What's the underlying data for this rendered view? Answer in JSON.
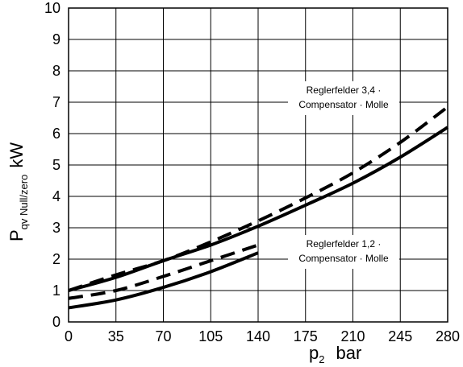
{
  "chart_data": {
    "type": "line",
    "title": "",
    "xlabel": {
      "main": "p",
      "sub": "2",
      "unit": "bar"
    },
    "ylabel": {
      "main": "P",
      "sub": "qv Null/zero",
      "unit": "kW"
    },
    "xlim": [
      0,
      280
    ],
    "ylim": [
      0,
      10
    ],
    "x_ticks": [
      "0",
      "35",
      "70",
      "105",
      "140",
      "175",
      "210",
      "245",
      "280"
    ],
    "y_ticks": [
      "0",
      "1",
      "2",
      "3",
      "4",
      "5",
      "6",
      "7",
      "8",
      "9",
      "10"
    ],
    "grid": true,
    "annotations": [
      {
        "lines": [
          "Reglerfelder 3,4 ·",
          "Compensator · Molle"
        ]
      },
      {
        "lines": [
          "Reglerfelder 1,2 ·",
          "Compensator · Molle"
        ]
      }
    ],
    "series": [
      {
        "style": "solid",
        "x": [
          0,
          35,
          70,
          105,
          140,
          175,
          210,
          245,
          280
        ],
        "y": [
          1.0,
          1.42,
          1.95,
          2.45,
          3.05,
          3.72,
          4.42,
          5.25,
          6.2
        ]
      },
      {
        "style": "dashed",
        "x": [
          0,
          35,
          70,
          105,
          140,
          175,
          210,
          245,
          280
        ],
        "y": [
          1.0,
          1.5,
          1.95,
          2.55,
          3.22,
          3.95,
          4.75,
          5.72,
          6.85
        ]
      },
      {
        "style": "solid",
        "x": [
          0,
          35,
          70,
          105,
          140
        ],
        "y": [
          0.45,
          0.7,
          1.1,
          1.6,
          2.2
        ]
      },
      {
        "style": "dashed",
        "x": [
          0,
          35,
          70,
          105,
          140
        ],
        "y": [
          0.75,
          1.0,
          1.45,
          1.95,
          2.45
        ]
      }
    ]
  }
}
